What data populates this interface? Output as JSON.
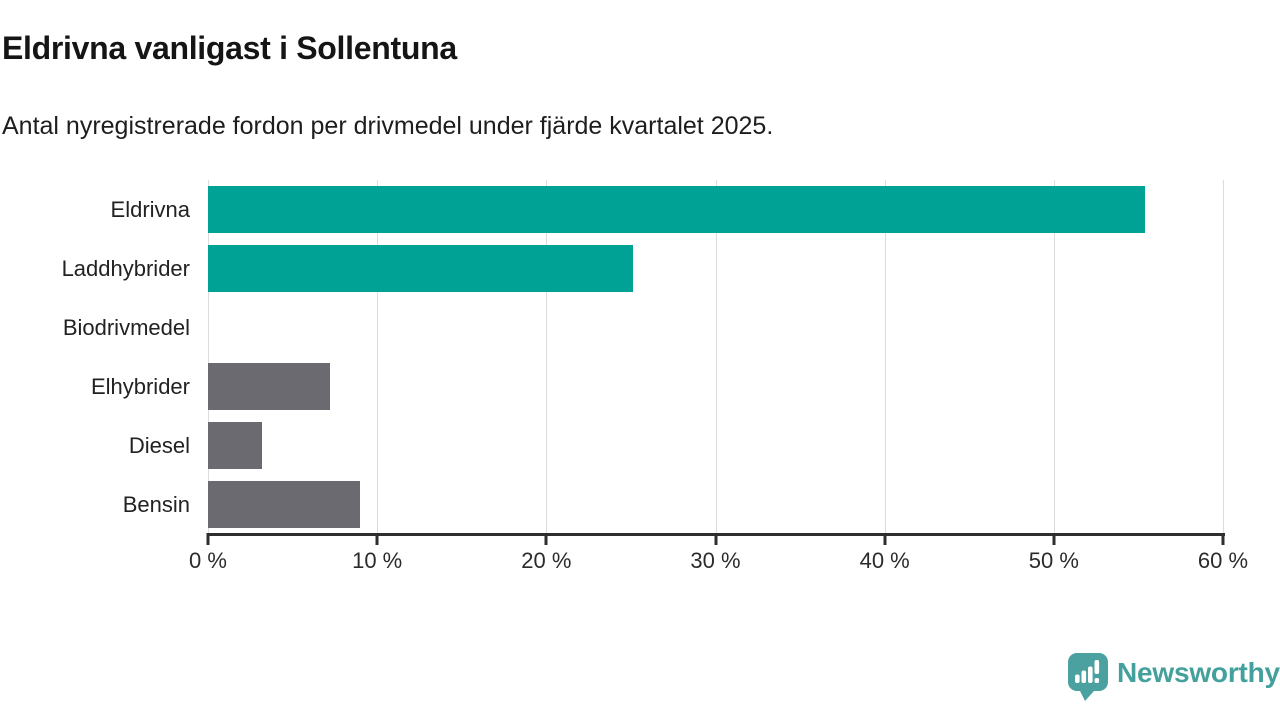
{
  "header": {
    "title": "Eldrivna vanligast i Sollentuna",
    "subtitle": "Antal nyregistrerade fordon per drivmedel under fjärde kvartalet 2025."
  },
  "branding": {
    "logo_text": "Newsworthy",
    "logo_text_color": "#44a09c",
    "logo_bubble_color": "#4ba1a0",
    "logo_icon": "bar-chart-speech-bubble-icon"
  },
  "colors": {
    "highlight_bar": "#00a296",
    "default_bar": "#6a6a70",
    "axis": "#2e2e2e",
    "grid": "#dcdcdc",
    "text": "#222222"
  },
  "chart_data": {
    "type": "bar",
    "orientation": "horizontal",
    "title": "Eldrivna vanligast i Sollentuna",
    "subtitle": "Antal nyregistrerade fordon per drivmedel under fjärde kvartalet 2025.",
    "categories": [
      "Eldrivna",
      "Laddhybrider",
      "Biodrivmedel",
      "Elhybrider",
      "Diesel",
      "Bensin"
    ],
    "values": [
      55.4,
      25.1,
      0,
      7.2,
      3.2,
      9.0
    ],
    "unit": "%",
    "bar_colors": [
      "#00a296",
      "#00a296",
      "#6a6a70",
      "#6a6a70",
      "#6a6a70",
      "#6a6a70"
    ],
    "xlabel": "",
    "ylabel": "",
    "xlim": [
      0,
      60
    ],
    "x_ticks": [
      0,
      10,
      20,
      30,
      40,
      50,
      60
    ],
    "x_tick_labels": [
      "0 %",
      "10 %",
      "20 %",
      "30 %",
      "40 %",
      "50 %",
      "60 %"
    ],
    "grid": true,
    "legend": false
  }
}
